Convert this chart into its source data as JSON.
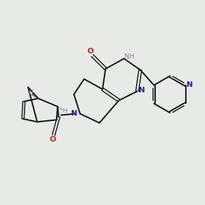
{
  "bg_color": "#e8eae8",
  "bond_color": "#1a1a1a",
  "N_color": "#2020cc",
  "O_color": "#cc2020",
  "H_color": "#5a9a9a",
  "figsize": [
    3.0,
    3.0
  ],
  "dpi": 100,
  "xlim": [
    0,
    10
  ],
  "ylim": [
    0,
    10
  ]
}
